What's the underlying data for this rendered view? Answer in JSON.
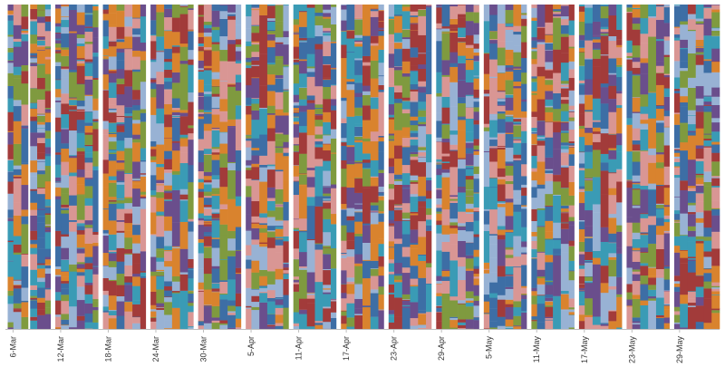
{
  "chart_data": {
    "type": "bar",
    "stacked": true,
    "percent_stacked": true,
    "grid": false,
    "legend": "none",
    "title": "",
    "xlabel": "",
    "ylabel": "",
    "week_start_labels": [
      "6-Mar",
      "12-Mar",
      "18-Mar",
      "24-Mar",
      "30-Mar",
      "5-Apr",
      "11-Apr",
      "17-Apr",
      "23-Apr",
      "29-Apr",
      "5-May",
      "11-May",
      "17-May",
      "23-May",
      "29-May"
    ],
    "segment_palette": [
      "#3d6ea5",
      "#a23b3a",
      "#7f9a3f",
      "#6a4e8c",
      "#3a9bb5",
      "#d9832e",
      "#98b2d4",
      "#d99694"
    ],
    "segments_per_bar_approx": 45,
    "note_values": "Each day is a 100% stacked column made of many thin coloured segments; individual segment values are too small and numerous to read."
  }
}
